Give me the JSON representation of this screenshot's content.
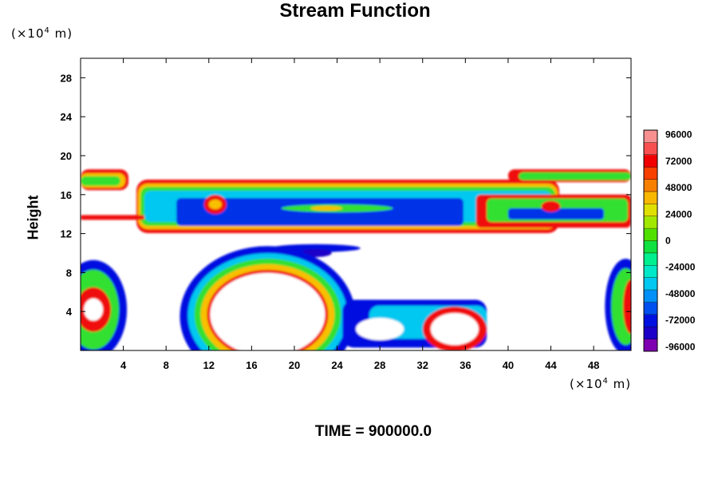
{
  "chart_data": {
    "type": "heatmap",
    "title": "Stream Function",
    "ylabel": "Height",
    "xlabel": "",
    "x_unit_prefix": "(×10",
    "x_unit_exp": "4",
    "x_unit_suffix": " m)",
    "y_unit_prefix": "(×10",
    "y_unit_exp": "4",
    "y_unit_suffix": " m)",
    "xlim": [
      0,
      51.5
    ],
    "ylim": [
      0,
      30
    ],
    "x_ticks": [
      "4",
      "8",
      "12",
      "16",
      "20",
      "24",
      "28",
      "32",
      "36",
      "40",
      "44",
      "48"
    ],
    "x_tick_values": [
      4,
      8,
      12,
      16,
      20,
      24,
      28,
      32,
      36,
      40,
      44,
      48
    ],
    "y_ticks": [
      "4",
      "8",
      "12",
      "16",
      "20",
      "24",
      "28"
    ],
    "y_tick_values": [
      4,
      8,
      12,
      16,
      20,
      24,
      28
    ],
    "colorbar": {
      "ticks": [
        "96000",
        "72000",
        "48000",
        "24000",
        "0",
        "-24000",
        "-48000",
        "-72000",
        "-96000"
      ],
      "tick_values": [
        96000,
        72000,
        48000,
        24000,
        0,
        -24000,
        -48000,
        -72000,
        -96000
      ],
      "range": [
        -100000,
        100000
      ],
      "colors": [
        "#7f00b0",
        "#1c00c8",
        "#0010e0",
        "#0050f0",
        "#0090f8",
        "#00c8f0",
        "#00e8c8",
        "#00f090",
        "#10e040",
        "#50e000",
        "#a0e800",
        "#e0e000",
        "#f8b800",
        "#f88000",
        "#f84000",
        "#f00000",
        "#f85050",
        "#f89090"
      ]
    },
    "features": [
      {
        "desc": "upper band of values along height ~13-18",
        "x": [
          0,
          51.5
        ],
        "y": [
          12,
          18.5
        ]
      },
      {
        "desc": "lower cells at height 0-8",
        "x": [
          0,
          51.5
        ],
        "y": [
          0,
          8.5
        ]
      }
    ]
  },
  "footer": {
    "time_label": "TIME = 900000.0"
  }
}
